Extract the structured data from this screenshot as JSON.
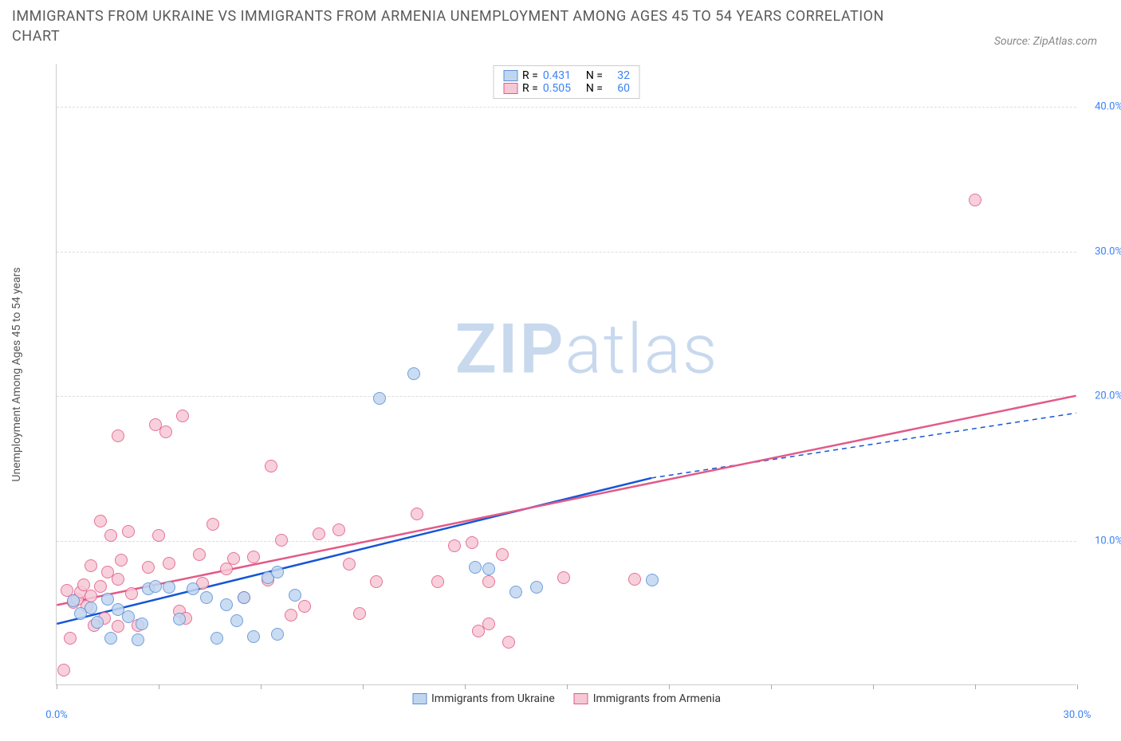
{
  "title": "IMMIGRANTS FROM UKRAINE VS IMMIGRANTS FROM ARMENIA UNEMPLOYMENT AMONG AGES 45 TO 54 YEARS CORRELATION CHART",
  "source_label": "Source: ZipAtlas.com",
  "ylabel": "Unemployment Among Ages 45 to 54 years",
  "watermark": {
    "part1": "ZIP",
    "part2": "atlas",
    "color": "#c8d9ee"
  },
  "chart": {
    "type": "scatter",
    "xlim": [
      0,
      30
    ],
    "ylim": [
      0,
      43
    ],
    "x_ticks": [
      0,
      3,
      6,
      9,
      12,
      15,
      18,
      21,
      24,
      27,
      30
    ],
    "x_tick_labels": {
      "0": "0.0%",
      "30": "30.0%"
    },
    "y_ticks": [
      10,
      20,
      30,
      40
    ],
    "y_tick_labels": {
      "10": "10.0%",
      "20": "20.0%",
      "30": "30.0%",
      "40": "40.0%"
    },
    "tick_color": "#3b82f6",
    "background_color": "#ffffff",
    "grid_color": "#dddddd",
    "point_radius": 8,
    "point_opacity": 0.85
  },
  "series": [
    {
      "name": "Immigrants from Ukraine",
      "stroke": "#5b8fd6",
      "fill": "#c0d6f0",
      "trend_color": "#1556d6",
      "r": "0.431",
      "n": "32",
      "trend": {
        "x1": 0,
        "y1": 4.2,
        "x2_solid": 17.5,
        "y2_solid": 14.3,
        "x2_dash": 30,
        "y2_dash": 18.8
      },
      "points": [
        {
          "x": 0.5,
          "y": 5.8
        },
        {
          "x": 0.7,
          "y": 4.9
        },
        {
          "x": 1.0,
          "y": 5.3
        },
        {
          "x": 1.2,
          "y": 4.3
        },
        {
          "x": 1.5,
          "y": 5.9
        },
        {
          "x": 1.6,
          "y": 3.2
        },
        {
          "x": 1.8,
          "y": 5.2
        },
        {
          "x": 2.1,
          "y": 4.7
        },
        {
          "x": 2.4,
          "y": 3.1
        },
        {
          "x": 2.7,
          "y": 6.6
        },
        {
          "x": 2.5,
          "y": 4.2
        },
        {
          "x": 2.9,
          "y": 6.8
        },
        {
          "x": 3.3,
          "y": 6.7
        },
        {
          "x": 3.6,
          "y": 4.5
        },
        {
          "x": 4.0,
          "y": 6.6
        },
        {
          "x": 4.4,
          "y": 6.0
        },
        {
          "x": 4.7,
          "y": 3.2
        },
        {
          "x": 5.0,
          "y": 5.5
        },
        {
          "x": 5.3,
          "y": 4.4
        },
        {
          "x": 5.5,
          "y": 6.0
        },
        {
          "x": 5.8,
          "y": 3.3
        },
        {
          "x": 6.2,
          "y": 7.4
        },
        {
          "x": 6.5,
          "y": 3.5
        },
        {
          "x": 6.5,
          "y": 7.8
        },
        {
          "x": 7.0,
          "y": 6.2
        },
        {
          "x": 9.5,
          "y": 19.8
        },
        {
          "x": 10.5,
          "y": 21.5
        },
        {
          "x": 12.3,
          "y": 8.1
        },
        {
          "x": 12.7,
          "y": 8.0
        },
        {
          "x": 13.5,
          "y": 6.4
        },
        {
          "x": 14.1,
          "y": 6.7
        },
        {
          "x": 17.5,
          "y": 7.2
        }
      ]
    },
    {
      "name": "Immigrants from Armenia",
      "stroke": "#e25a87",
      "fill": "#f6c8d6",
      "trend_color": "#e25a87",
      "r": "0.505",
      "n": "60",
      "trend": {
        "x1": 0,
        "y1": 5.5,
        "x2_solid": 30,
        "y2_solid": 20.0
      },
      "points": [
        {
          "x": 0.2,
          "y": 1.0
        },
        {
          "x": 0.3,
          "y": 6.5
        },
        {
          "x": 0.5,
          "y": 5.7
        },
        {
          "x": 0.4,
          "y": 3.2
        },
        {
          "x": 0.6,
          "y": 5.9
        },
        {
          "x": 0.7,
          "y": 6.4
        },
        {
          "x": 0.8,
          "y": 6.9
        },
        {
          "x": 0.9,
          "y": 5.4
        },
        {
          "x": 1.0,
          "y": 8.2
        },
        {
          "x": 1.0,
          "y": 6.1
        },
        {
          "x": 1.1,
          "y": 4.1
        },
        {
          "x": 1.3,
          "y": 6.8
        },
        {
          "x": 1.3,
          "y": 11.3
        },
        {
          "x": 1.4,
          "y": 4.6
        },
        {
          "x": 1.5,
          "y": 7.8
        },
        {
          "x": 1.6,
          "y": 10.3
        },
        {
          "x": 1.8,
          "y": 7.3
        },
        {
          "x": 1.8,
          "y": 4.0
        },
        {
          "x": 1.8,
          "y": 17.2
        },
        {
          "x": 1.9,
          "y": 8.6
        },
        {
          "x": 2.1,
          "y": 10.6
        },
        {
          "x": 2.2,
          "y": 6.3
        },
        {
          "x": 2.4,
          "y": 4.1
        },
        {
          "x": 2.7,
          "y": 8.1
        },
        {
          "x": 2.9,
          "y": 18.0
        },
        {
          "x": 3.2,
          "y": 17.5
        },
        {
          "x": 3.3,
          "y": 8.4
        },
        {
          "x": 3.6,
          "y": 5.1
        },
        {
          "x": 3.7,
          "y": 18.6
        },
        {
          "x": 3.8,
          "y": 4.6
        },
        {
          "x": 4.2,
          "y": 9.0
        },
        {
          "x": 4.3,
          "y": 7.0
        },
        {
          "x": 4.6,
          "y": 11.1
        },
        {
          "x": 5.0,
          "y": 8.0
        },
        {
          "x": 5.2,
          "y": 8.7
        },
        {
          "x": 5.5,
          "y": 6.0
        },
        {
          "x": 5.8,
          "y": 8.8
        },
        {
          "x": 6.2,
          "y": 7.2
        },
        {
          "x": 6.3,
          "y": 15.1
        },
        {
          "x": 6.6,
          "y": 10.0
        },
        {
          "x": 6.9,
          "y": 4.8
        },
        {
          "x": 7.3,
          "y": 5.4
        },
        {
          "x": 7.7,
          "y": 10.4
        },
        {
          "x": 8.3,
          "y": 10.7
        },
        {
          "x": 8.6,
          "y": 8.3
        },
        {
          "x": 8.9,
          "y": 4.9
        },
        {
          "x": 9.4,
          "y": 7.1
        },
        {
          "x": 10.6,
          "y": 11.8
        },
        {
          "x": 11.2,
          "y": 7.1
        },
        {
          "x": 11.7,
          "y": 9.6
        },
        {
          "x": 12.2,
          "y": 9.8
        },
        {
          "x": 12.4,
          "y": 3.7
        },
        {
          "x": 12.7,
          "y": 4.2
        },
        {
          "x": 12.7,
          "y": 7.1
        },
        {
          "x": 13.1,
          "y": 9.0
        },
        {
          "x": 13.3,
          "y": 2.9
        },
        {
          "x": 14.9,
          "y": 7.4
        },
        {
          "x": 17.0,
          "y": 7.3
        },
        {
          "x": 27.0,
          "y": 33.5
        },
        {
          "x": 3.0,
          "y": 10.3
        }
      ]
    }
  ],
  "legend_top": {
    "r_prefix": "R =",
    "n_prefix": "N ="
  },
  "legend_bottom": [
    {
      "swatch": 0,
      "label": "Immigrants from Ukraine"
    },
    {
      "swatch": 1,
      "label": "Immigrants from Armenia"
    }
  ]
}
